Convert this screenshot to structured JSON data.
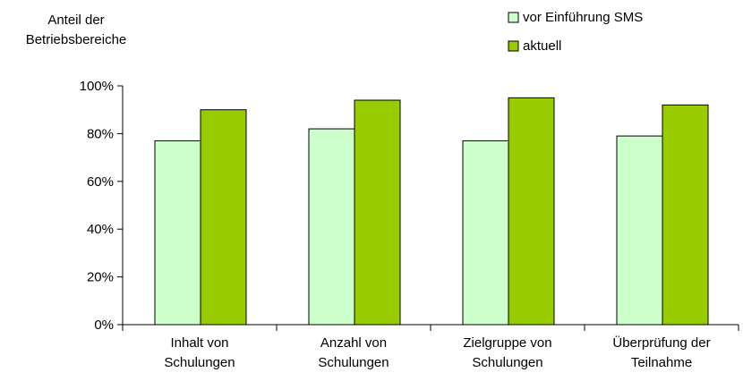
{
  "chart_data": {
    "type": "bar",
    "y_axis_label": "Anteil der Betriebsbereiche",
    "categories": [
      "Inhalt von Schulungen",
      "Anzahl von Schulungen",
      "Zielgruppe von Schulungen",
      "Überprüfung der Teilnahme"
    ],
    "series": [
      {
        "name": "vor Einführung SMS",
        "color": "#ccffcc",
        "values": [
          77,
          82,
          77,
          79
        ]
      },
      {
        "name": "aktuell",
        "color": "#99cc00",
        "values": [
          90,
          94,
          95,
          92
        ]
      }
    ],
    "ylim": [
      0,
      100
    ],
    "yticks": [
      {
        "value": 0,
        "label": "0%"
      },
      {
        "value": 20,
        "label": "20%"
      },
      {
        "value": 40,
        "label": "40%"
      },
      {
        "value": 60,
        "label": "60%"
      },
      {
        "value": 80,
        "label": "80%"
      },
      {
        "value": 100,
        "label": "100%"
      }
    ],
    "grid": false,
    "legend": "top-right"
  }
}
